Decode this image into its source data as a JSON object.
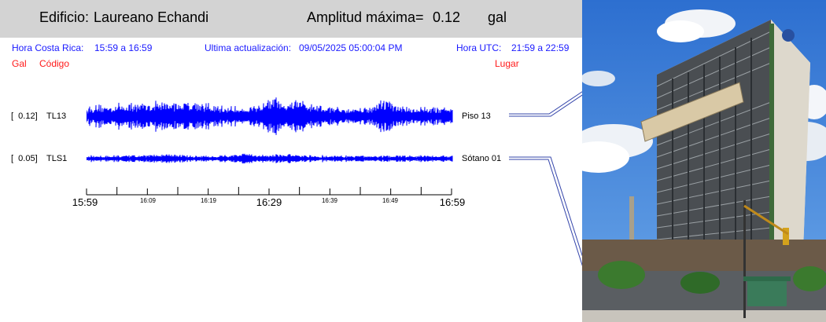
{
  "header": {
    "building_label": "Edificio:",
    "building_name": "Laureano Echandi",
    "amplitude_label": "Amplitud máxima=",
    "amplitude_value": "0.12",
    "amplitude_unit": "gal"
  },
  "info": {
    "local_label": "Hora Costa Rica:",
    "local_range": "15:59 a 16:59",
    "update_label": "Ultima actualización:",
    "update_value": "09/05/2025 05:00:04 PM",
    "utc_label": "Hora UTC:",
    "utc_range": "21:59 a 22:59"
  },
  "columns": {
    "gal": "Gal",
    "code": "Código",
    "place": "Lugar"
  },
  "channels": [
    {
      "amplitude": "[  0.12]",
      "code": "TL13",
      "place": "Piso 13",
      "color": "#0000ff"
    },
    {
      "amplitude": "[  0.05]",
      "code": "TLS1",
      "place": "Sótano 01",
      "color": "#0000ff"
    }
  ],
  "time_axis": {
    "major_labels": [
      "15:59",
      "16:29",
      "16:59"
    ],
    "minor_labels": [
      "16:09",
      "16:19",
      "16:39",
      "16:49"
    ]
  },
  "colors": {
    "header_bg": "#d3d3d3",
    "info_text": "#1a1aff",
    "column_text": "#ff1a1a",
    "trace": "#0000ff"
  }
}
